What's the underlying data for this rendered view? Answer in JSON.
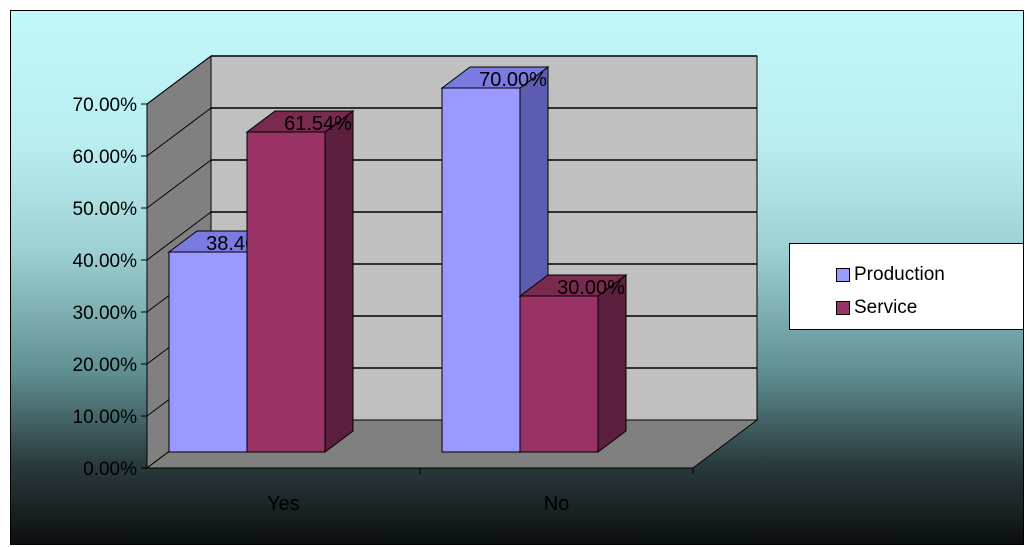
{
  "chart_data": {
    "type": "bar",
    "title": "",
    "xlabel": "",
    "ylabel": "",
    "categories": [
      "Yes",
      "No"
    ],
    "series": [
      {
        "name": "Production",
        "values": [
          38.46,
          70.0
        ],
        "labels": [
          "38.46%",
          "70.00%"
        ],
        "color": "#9999ff",
        "side_color": "#5c5cb0",
        "top_color": "#7a7ae0"
      },
      {
        "name": "Service",
        "values": [
          61.54,
          30.0
        ],
        "labels": [
          "61.54%",
          "30.00%"
        ],
        "color": "#993366",
        "side_color": "#5c1f3d",
        "top_color": "#7a294f"
      }
    ],
    "ylim": [
      0,
      70
    ],
    "yticks": [
      0,
      10,
      20,
      30,
      40,
      50,
      60,
      70
    ],
    "ytick_labels": [
      "0.00%",
      "10.00%",
      "20.00%",
      "30.00%",
      "40.00%",
      "50.00%",
      "60.00%",
      "70.00%"
    ],
    "grid": true,
    "three_d": true,
    "legend_position": "right",
    "colors": {
      "wall": "#c0c0c0",
      "side_wall": "#808080",
      "floor": "#808080"
    }
  }
}
